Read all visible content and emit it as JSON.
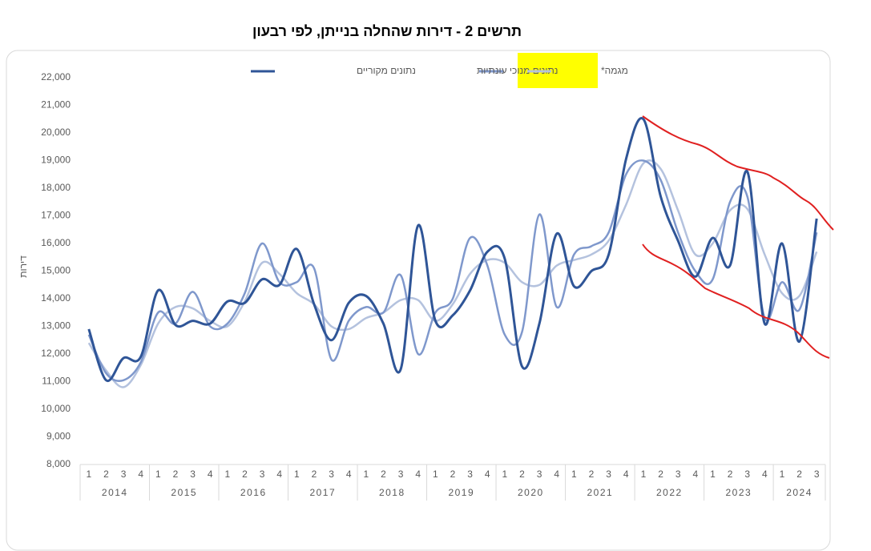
{
  "chart_data": {
    "type": "line",
    "title": "תרשים 2 - דירות שהחלה בנייתן, לפי רבעון",
    "y_label": "דירות",
    "categories": [
      "1",
      "2",
      "3",
      "4",
      "1",
      "2",
      "3",
      "4",
      "1",
      "2",
      "3",
      "4",
      "1",
      "2",
      "3",
      "4",
      "1",
      "2",
      "3",
      "4",
      "1",
      "2",
      "3",
      "4",
      "1",
      "2",
      "3",
      "4",
      "1",
      "2",
      "3",
      "4",
      "1",
      "2",
      "3",
      "4",
      "1",
      "2",
      "3",
      "4",
      "1",
      "2",
      "3"
    ],
    "years": [
      "2014",
      "2015",
      "2016",
      "2017",
      "2018",
      "2019",
      "2020",
      "2021",
      "2022",
      "2023",
      "2024"
    ],
    "series": [
      {
        "name": "נתונים מקוריים",
        "color": "#2f5597",
        "values": [
          12900,
          11050,
          11850,
          11900,
          14300,
          13050,
          13200,
          13100,
          13900,
          13850,
          14700,
          14500,
          15800,
          13800,
          12500,
          13850,
          14100,
          13100,
          11450,
          16650,
          13200,
          13400,
          14300,
          15700,
          15450,
          11550,
          13100,
          16350,
          14450,
          15000,
          15600,
          19050,
          20500,
          17700,
          16100,
          14800,
          16200,
          15200,
          18600,
          13100,
          16000,
          12450,
          16900
        ]
      },
      {
        "name": "נתונים מנוכי עונתיות",
        "color": "#7f98cc",
        "values": [
          12700,
          11300,
          11050,
          11700,
          13500,
          13100,
          14250,
          13000,
          13100,
          14200,
          16000,
          14600,
          14600,
          15100,
          11800,
          13200,
          13700,
          13500,
          14850,
          12000,
          13500,
          14000,
          16200,
          15200,
          12700,
          12800,
          17050,
          13700,
          15600,
          15900,
          16400,
          18500,
          19000,
          18300,
          16400,
          15000,
          14700,
          17500,
          17700,
          13300,
          14600,
          13600,
          16400
        ]
      },
      {
        "name": "מגמה*",
        "color": "#b4c2de",
        "values": [
          12400,
          11400,
          10800,
          11600,
          13100,
          13700,
          13650,
          13200,
          13000,
          13900,
          15300,
          14900,
          14200,
          13800,
          13000,
          12900,
          13300,
          13500,
          13950,
          13950,
          13200,
          13800,
          14900,
          15400,
          15300,
          14600,
          14500,
          15200,
          15400,
          15600,
          16100,
          17400,
          18900,
          18700,
          17200,
          15600,
          16000,
          17200,
          17250,
          15600,
          14200,
          14100,
          15700
        ]
      }
    ],
    "ylim": [
      8000,
      22000
    ],
    "yticks": [
      {
        "value": 8000,
        "label": "8,000"
      },
      {
        "value": 9000,
        "label": "9,000"
      },
      {
        "value": 10000,
        "label": "10,000"
      },
      {
        "value": 11000,
        "label": "11,000"
      },
      {
        "value": 12000,
        "label": "12,000"
      },
      {
        "value": 13000,
        "label": "13,000"
      },
      {
        "value": 14000,
        "label": "14,000"
      },
      {
        "value": 15000,
        "label": "15,000"
      },
      {
        "value": 16000,
        "label": "16,000"
      },
      {
        "value": 17000,
        "label": "17,000"
      },
      {
        "value": 18000,
        "label": "18,000"
      },
      {
        "value": 19000,
        "label": "19,000"
      },
      {
        "value": 20000,
        "label": "20,000"
      },
      {
        "value": 21000,
        "label": "21,000"
      },
      {
        "value": 22000,
        "label": "22,000"
      }
    ],
    "grid": false
  }
}
